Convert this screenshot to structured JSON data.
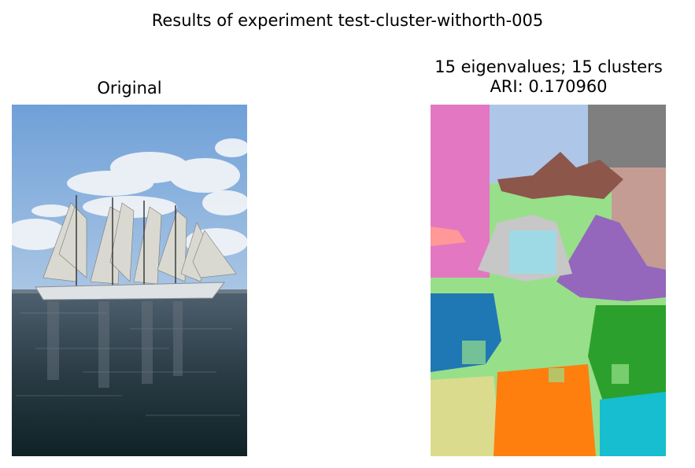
{
  "figure": {
    "suptitle": "Results of experiment test-cluster-withorth-005"
  },
  "chart_data": [
    {
      "type": "image",
      "title": "Original",
      "content": "photo of a tall ship with sails under a blue sky with clouds, reflected in water"
    },
    {
      "type": "heatmap",
      "title_line1": "15 eigenvalues; 15 clusters",
      "title_line2": "ARI: 0.170960",
      "n_clusters": 15,
      "colormap": "tab20",
      "cluster_colors": [
        "#1f77b4",
        "#ff7f0e",
        "#2ca02c",
        "#d62728",
        "#9467bd",
        "#8c564b",
        "#e377c2",
        "#7f7f7f",
        "#bcbd22",
        "#17becf",
        "#aec7e8",
        "#98df8a",
        "#ff9896",
        "#c7c7c7",
        "#9edae5",
        "#c5b0d5",
        "#dbdb8d"
      ]
    }
  ],
  "colors": {
    "sky_top": "#6fa0d8",
    "sky_bottom": "#aac6e4",
    "water_top": "#4e5f6e",
    "water_bottom": "#0f2226",
    "hull": "#dfe2e4"
  }
}
